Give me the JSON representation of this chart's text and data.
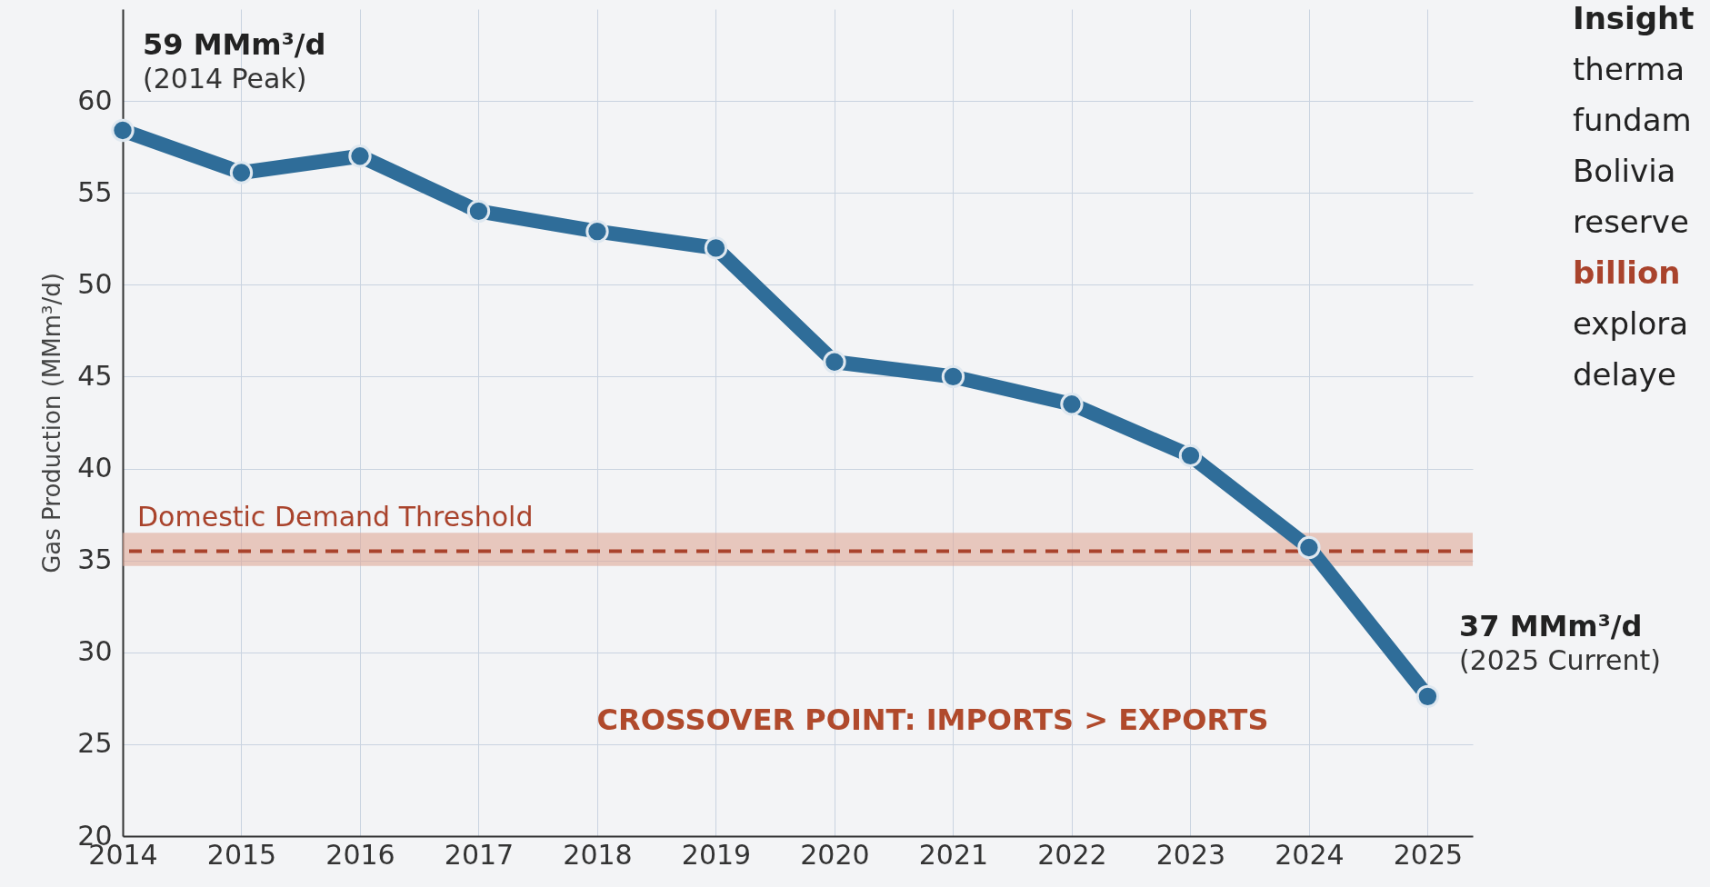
{
  "chart_data": {
    "type": "line",
    "ylabel": "Gas Production (MMm³/d)",
    "x": [
      2014,
      2015,
      2016,
      2017,
      2018,
      2019,
      2020,
      2021,
      2022,
      2023,
      2024,
      2025
    ],
    "series": [
      {
        "color": "#2f6d99",
        "values": [
          58.4,
          56.1,
          57.0,
          54.0,
          52.9,
          52.0,
          45.8,
          45.0,
          43.5,
          40.7,
          35.7,
          27.6
        ]
      }
    ],
    "xlim": [
      2014,
      2025.38
    ],
    "xticks": [
      2014,
      2015,
      2016,
      2017,
      2018,
      2019,
      2020,
      2021,
      2022,
      2023,
      2024,
      2025
    ],
    "ylim": [
      20,
      65
    ],
    "yticks": [
      20,
      25,
      30,
      35,
      40,
      45,
      50,
      55,
      60
    ],
    "grid": true,
    "marker": "circle",
    "line_style": "solid",
    "ref_lines": [
      {
        "axis": "y",
        "value": 35.5,
        "label": "Domestic Demand Threshold",
        "color": "#a9432c",
        "line_style": "dashed"
      }
    ],
    "bands": [
      {
        "axis": "y",
        "from": 34.7,
        "to": 36.5,
        "color": "#e0a898"
      }
    ],
    "annotations": [
      "59 MMm³/d",
      "(2014 Peak)",
      "37 MMm³/d",
      "(2025 Current)",
      "CROSSOVER POINT: IMPORTS > EXPORTS",
      "Insight",
      "therma",
      "fundam",
      "Bolivia",
      "reserve",
      "billion",
      "explora",
      "delaye"
    ]
  }
}
